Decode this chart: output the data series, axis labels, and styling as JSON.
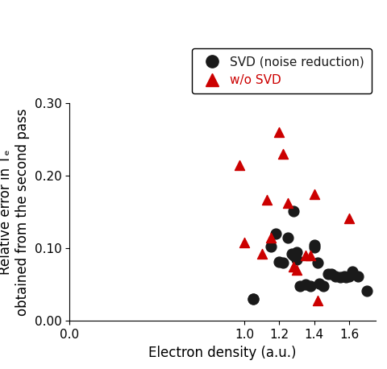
{
  "svd_x": [
    1.05,
    1.05,
    1.15,
    1.18,
    1.2,
    1.22,
    1.25,
    1.27,
    1.28,
    1.28,
    1.3,
    1.3,
    1.32,
    1.35,
    1.38,
    1.4,
    1.4,
    1.42,
    1.43,
    1.45,
    1.48,
    1.5,
    1.52,
    1.55,
    1.57,
    1.58,
    1.6,
    1.62,
    1.65,
    1.7
  ],
  "svd_y": [
    0.03,
    0.03,
    0.103,
    0.12,
    0.082,
    0.08,
    0.115,
    0.093,
    0.09,
    0.152,
    0.095,
    0.085,
    0.048,
    0.05,
    0.048,
    0.105,
    0.102,
    0.08,
    0.052,
    0.048,
    0.065,
    0.065,
    0.062,
    0.06,
    0.062,
    0.06,
    0.062,
    0.068,
    0.062,
    0.042
  ],
  "wo_x": [
    0.97,
    1.0,
    1.1,
    1.13,
    1.15,
    1.2,
    1.22,
    1.25,
    1.28,
    1.3,
    1.35,
    1.38,
    1.4,
    1.42,
    1.6
  ],
  "wo_y": [
    0.215,
    0.108,
    0.093,
    0.167,
    0.115,
    0.26,
    0.23,
    0.163,
    0.075,
    0.07,
    0.09,
    0.09,
    0.175,
    0.028,
    0.142
  ],
  "svd_color": "#1a1a1a",
  "wo_color": "#cc0000",
  "marker_svd": "o",
  "marker_wo": "^",
  "marker_size_svd": 85,
  "marker_size_wo": 75,
  "xlim": [
    0.0,
    1.75
  ],
  "ylim": [
    0.0,
    0.3
  ],
  "xticks": [
    0.0,
    1.0,
    1.2,
    1.4,
    1.6
  ],
  "yticks": [
    0.0,
    0.1,
    0.2,
    0.3
  ],
  "xlabel": "Electron density (a.u.)",
  "ylabel": "Relative error in Tₑ\nobtained from the second pass",
  "legend_svd": "SVD (noise reduction)",
  "legend_wo": "w/o SVD",
  "legend_fontsize": 11,
  "label_fontsize": 12,
  "tick_fontsize": 11
}
